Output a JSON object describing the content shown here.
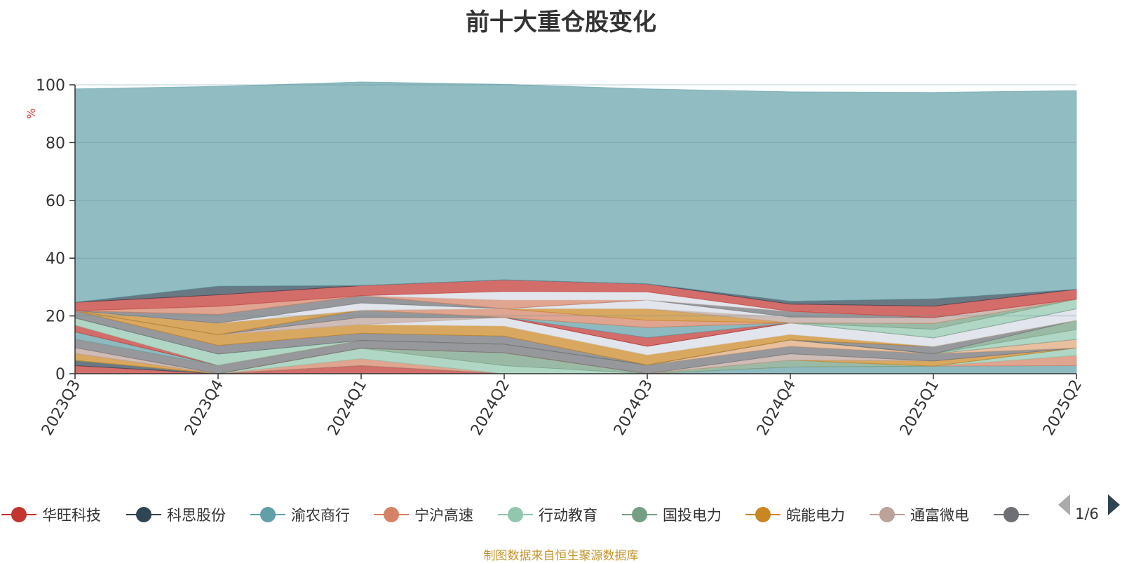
{
  "title": "前十大重仓股变化",
  "source_note": "制图数据来自恒生聚源数据库",
  "legend_pager": {
    "label": "1/6"
  },
  "chart_data": {
    "type": "area",
    "stacked": true,
    "title": "前十大重仓股变化",
    "ylabel": "%",
    "ylim": [
      0,
      100
    ],
    "yticks": [
      0,
      20,
      40,
      60,
      80,
      100
    ],
    "categories": [
      "2023Q3",
      "2023Q4",
      "2024Q1",
      "2024Q2",
      "2024Q3",
      "2024Q4",
      "2025Q1",
      "2025Q2"
    ],
    "grid": true,
    "legend_position": "bottom",
    "legend_items": [
      {
        "name": "华旺科技",
        "color": "#c23531"
      },
      {
        "name": "科思股份",
        "color": "#2f4554"
      },
      {
        "name": "渝农商行",
        "color": "#61a0a8"
      },
      {
        "name": "宁沪高速",
        "color": "#d48265"
      },
      {
        "name": "行动教育",
        "color": "#91c7ae"
      },
      {
        "name": "国投电力",
        "color": "#749f83"
      },
      {
        "name": "皖能电力",
        "color": "#ca8622"
      },
      {
        "name": "通富微电",
        "color": "#bda29a"
      },
      {
        "name": "",
        "color": "#6e7074"
      }
    ],
    "series": [
      {
        "color": "#c23531",
        "values": [
          2.8,
          0,
          2.8,
          0,
          0,
          0,
          0,
          0
        ]
      },
      {
        "color": "#2f4554",
        "values": [
          1.8,
          0,
          0,
          0,
          0,
          0,
          0,
          0
        ]
      },
      {
        "color": "#61a0a8",
        "values": [
          0,
          0,
          0,
          0,
          0,
          2.3,
          2.6,
          2.8
        ]
      },
      {
        "color": "#d48265",
        "values": [
          0,
          0,
          2.4,
          0,
          0,
          0,
          0,
          3.5
        ]
      },
      {
        "color": "#91c7ae",
        "values": [
          0,
          0,
          3.6,
          2.8,
          0,
          0,
          0,
          2.6
        ]
      },
      {
        "color": "#749f83",
        "values": [
          0,
          0,
          0,
          4.4,
          0,
          2.4,
          0,
          0
        ]
      },
      {
        "color": "#ca8622",
        "values": [
          2.4,
          0,
          0,
          0,
          0,
          0,
          1.8,
          0
        ]
      },
      {
        "color": "#bda29a",
        "values": [
          2.0,
          0,
          0,
          0,
          0,
          2.2,
          0,
          0
        ]
      },
      {
        "color": "#6e7074",
        "values": [
          3.0,
          2.9,
          2.7,
          3.0,
          3.0,
          2.6,
          2.5,
          0
        ]
      },
      {
        "color": "#dfa77c",
        "values": [
          0,
          0,
          0,
          0,
          0,
          2.2,
          0,
          3.0
        ]
      },
      {
        "color": "#61a0a8",
        "values": [
          2.5,
          0,
          0,
          0,
          0,
          0,
          0,
          0
        ]
      },
      {
        "color": "#c23531",
        "values": [
          2.3,
          0,
          0,
          0,
          0,
          0,
          0,
          0
        ]
      },
      {
        "color": "#91c7ae",
        "values": [
          2.5,
          3.9,
          0,
          0,
          0,
          0,
          0,
          3.4
        ]
      },
      {
        "color": "#749f83",
        "values": [
          0,
          0,
          0,
          0,
          0,
          0,
          0,
          3.2
        ]
      },
      {
        "color": "#6e7074",
        "values": [
          2.5,
          3.0,
          2.5,
          2.8,
          0,
          0,
          2.5,
          0
        ]
      },
      {
        "color": "#ca8622",
        "values": [
          0,
          3.7,
          3.0,
          3.5,
          3.5,
          1.9,
          0,
          0
        ]
      },
      {
        "color": "#d7dde5",
        "values": [
          0,
          0,
          0,
          3.0,
          3.0,
          4.0,
          3.0,
          4.0
        ]
      },
      {
        "color": "#bda29a",
        "values": [
          0,
          0,
          2.5,
          0,
          0,
          0,
          0,
          0
        ]
      },
      {
        "color": "#6e7074",
        "values": [
          0,
          0,
          2.5,
          0,
          0,
          0,
          0,
          0
        ]
      },
      {
        "color": "#c23531",
        "values": [
          0,
          0,
          0,
          0,
          3.0,
          0,
          0,
          0
        ]
      },
      {
        "color": "#61a0a8",
        "values": [
          0,
          0,
          0,
          0,
          3.5,
          0,
          0,
          0
        ]
      },
      {
        "color": "#91c7ae",
        "values": [
          0,
          0,
          0,
          0,
          0,
          0,
          3.0,
          3.3
        ]
      },
      {
        "color": "#749f83",
        "values": [
          0,
          0,
          0,
          0,
          0,
          0,
          2.0,
          0
        ]
      },
      {
        "color": "#d48265",
        "values": [
          0,
          0,
          0,
          3.0,
          2.5,
          0,
          0,
          0
        ]
      },
      {
        "color": "#ca8622",
        "values": [
          0,
          4.0,
          0,
          0,
          4.0,
          0,
          0,
          0
        ]
      },
      {
        "color": "#bda29a",
        "values": [
          0,
          0,
          0,
          0,
          0,
          2.0,
          2.0,
          0
        ]
      },
      {
        "color": "#d7dde5",
        "values": [
          0,
          0,
          2.5,
          0,
          3.0,
          0,
          0,
          0
        ]
      },
      {
        "color": "#6e7074",
        "values": [
          0,
          3.0,
          2.5,
          0,
          0,
          2.0,
          0,
          0
        ]
      },
      {
        "color": "#d48265",
        "values": [
          0,
          2.8,
          0,
          3.0,
          0,
          0,
          0,
          0
        ]
      },
      {
        "color": "#d7dde5",
        "values": [
          0,
          0,
          0,
          3.0,
          2.8,
          0,
          0,
          0
        ]
      },
      {
        "color": "#c23531",
        "values": [
          2.9,
          4.0,
          3.5,
          4.0,
          2.8,
          2.5,
          4.0,
          3.4
        ]
      },
      {
        "color": "#2f4554",
        "values": [
          0,
          3.0,
          0,
          0,
          0,
          1.0,
          2.5,
          0
        ]
      },
      {
        "color": "#61a0a8",
        "values": [
          73.9,
          69.2,
          70.5,
          67.7,
          67.5,
          72.5,
          71.5,
          68.8
        ]
      }
    ]
  }
}
